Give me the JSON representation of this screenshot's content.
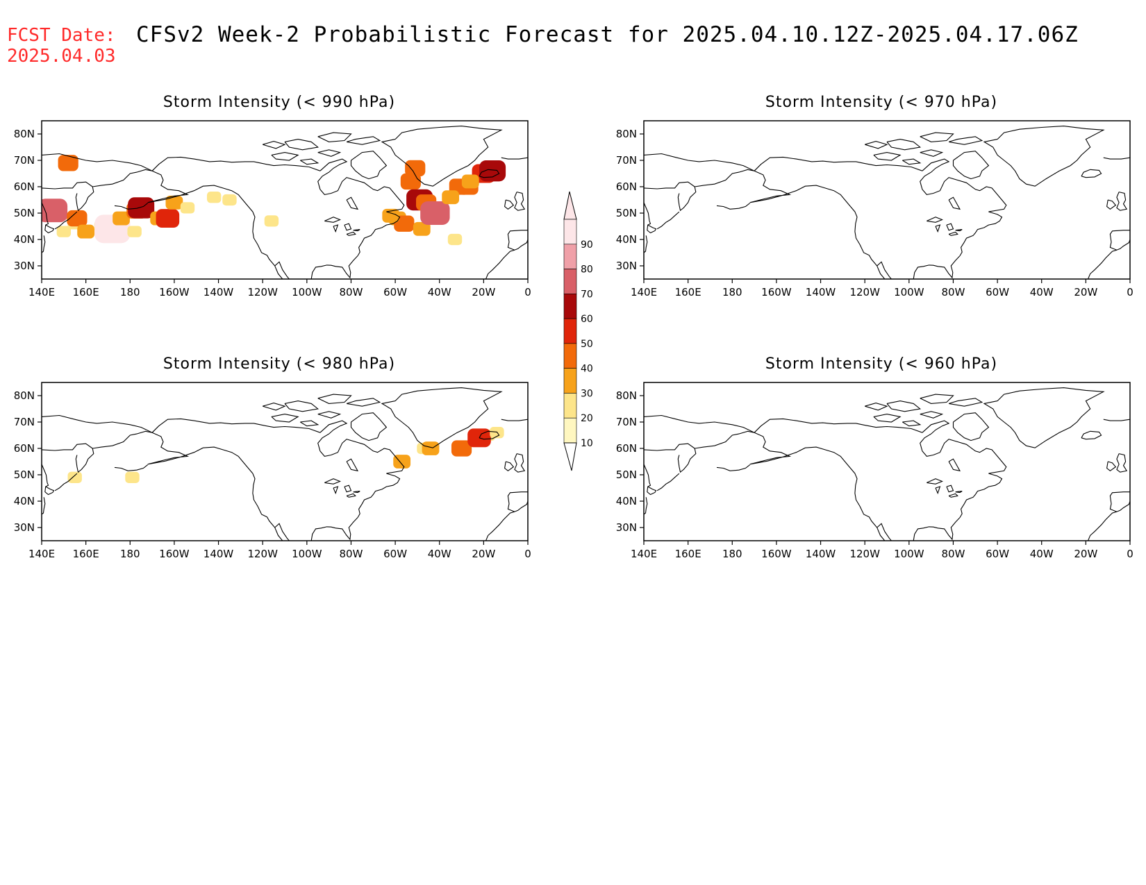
{
  "header": {
    "fcst_label": "FCST Date:",
    "fcst_date": "2025.04.03",
    "title": "CFSv2 Week-2 Probabilistic Forecast for 2025.04.10.12Z-2025.04.17.06Z"
  },
  "axes": {
    "lon_ticks": [
      "140E",
      "160E",
      "180",
      "160W",
      "140W",
      "120W",
      "100W",
      "80W",
      "60W",
      "40W",
      "20W",
      "0"
    ],
    "lat_ticks": [
      "80N",
      "70N",
      "60N",
      "50N",
      "40N",
      "30N"
    ]
  },
  "colorbar": {
    "levels": [
      "10",
      "20",
      "30",
      "40",
      "50",
      "60",
      "70",
      "80",
      "90"
    ],
    "colors": [
      "#fff7c0",
      "#fde58a",
      "#f7a21a",
      "#f26a0a",
      "#e0250a",
      "#a8090a",
      "#d96068",
      "#f0a0a8",
      "#fde6e8"
    ]
  },
  "panels": [
    {
      "title": "Storm Intensity (< 990 hPa)",
      "blobs": [
        {
          "lon": 147,
          "lat": 50,
          "level": 3
        },
        {
          "lon": 145,
          "lat": 51,
          "level": 6
        },
        {
          "lon": 150,
          "lat": 43,
          "level": 1
        },
        {
          "lon": 155,
          "lat": 46,
          "level": 1
        },
        {
          "lon": 156,
          "lat": 48,
          "level": 3
        },
        {
          "lon": 160,
          "lat": 43,
          "level": 2
        },
        {
          "lon": 167,
          "lat": 45,
          "level": 1
        },
        {
          "lon": 172,
          "lat": 44,
          "level": 4
        },
        {
          "lon": 172,
          "lat": 44,
          "level": 8
        },
        {
          "lon": 176,
          "lat": 48,
          "level": 2
        },
        {
          "lon": 183,
          "lat": 51,
          "level": 3
        },
        {
          "lon": 185,
          "lat": 52,
          "level": 5
        },
        {
          "lon": 182,
          "lat": 43,
          "level": 1
        },
        {
          "lon": 193,
          "lat": 48,
          "level": 2
        },
        {
          "lon": 197,
          "lat": 48,
          "level": 4
        },
        {
          "lon": 200,
          "lat": 54,
          "level": 2
        },
        {
          "lon": 206,
          "lat": 52,
          "level": 1
        },
        {
          "lon": 218,
          "lat": 56,
          "level": 1
        },
        {
          "lon": 225,
          "lat": 55,
          "level": 1
        },
        {
          "lon": 152,
          "lat": 69,
          "level": 3
        },
        {
          "lon": 244,
          "lat": 47,
          "level": 1
        },
        {
          "lon": 307,
          "lat": 62,
          "level": 3
        },
        {
          "lon": 311,
          "lat": 55,
          "level": 5
        },
        {
          "lon": 314,
          "lat": 54,
          "level": 3
        },
        {
          "lon": 301,
          "lat": 48,
          "level": 2
        },
        {
          "lon": 304,
          "lat": 46,
          "level": 3
        },
        {
          "lon": 298,
          "lat": 49,
          "level": 2
        },
        {
          "lon": 312,
          "lat": 44,
          "level": 2
        },
        {
          "lon": 317,
          "lat": 50,
          "level": 4
        },
        {
          "lon": 318,
          "lat": 50,
          "level": 6
        },
        {
          "lon": 329,
          "lat": 60,
          "level": 3
        },
        {
          "lon": 325,
          "lat": 56,
          "level": 2
        },
        {
          "lon": 333,
          "lat": 60,
          "level": 3
        },
        {
          "lon": 340,
          "lat": 65,
          "level": 4
        },
        {
          "lon": 344,
          "lat": 66,
          "level": 5
        },
        {
          "lon": 334,
          "lat": 62,
          "level": 2
        },
        {
          "lon": 327,
          "lat": 40,
          "level": 1
        },
        {
          "lon": 309,
          "lat": 67,
          "level": 3
        }
      ]
    },
    {
      "title": "Storm Intensity (< 970 hPa)",
      "blobs": []
    },
    {
      "title": "Storm Intensity (< 980 hPa)",
      "blobs": [
        {
          "lon": 155,
          "lat": 49,
          "level": 1
        },
        {
          "lon": 181,
          "lat": 49,
          "level": 1
        },
        {
          "lon": 303,
          "lat": 55,
          "level": 2
        },
        {
          "lon": 313,
          "lat": 60,
          "level": 1
        },
        {
          "lon": 316,
          "lat": 60,
          "level": 2
        },
        {
          "lon": 330,
          "lat": 60,
          "level": 3
        },
        {
          "lon": 342,
          "lat": 65,
          "level": 1
        },
        {
          "lon": 338,
          "lat": 64,
          "level": 4
        },
        {
          "lon": 346,
          "lat": 66,
          "level": 1
        }
      ]
    },
    {
      "title": "Storm Intensity (< 960 hPa)",
      "blobs": []
    }
  ]
}
